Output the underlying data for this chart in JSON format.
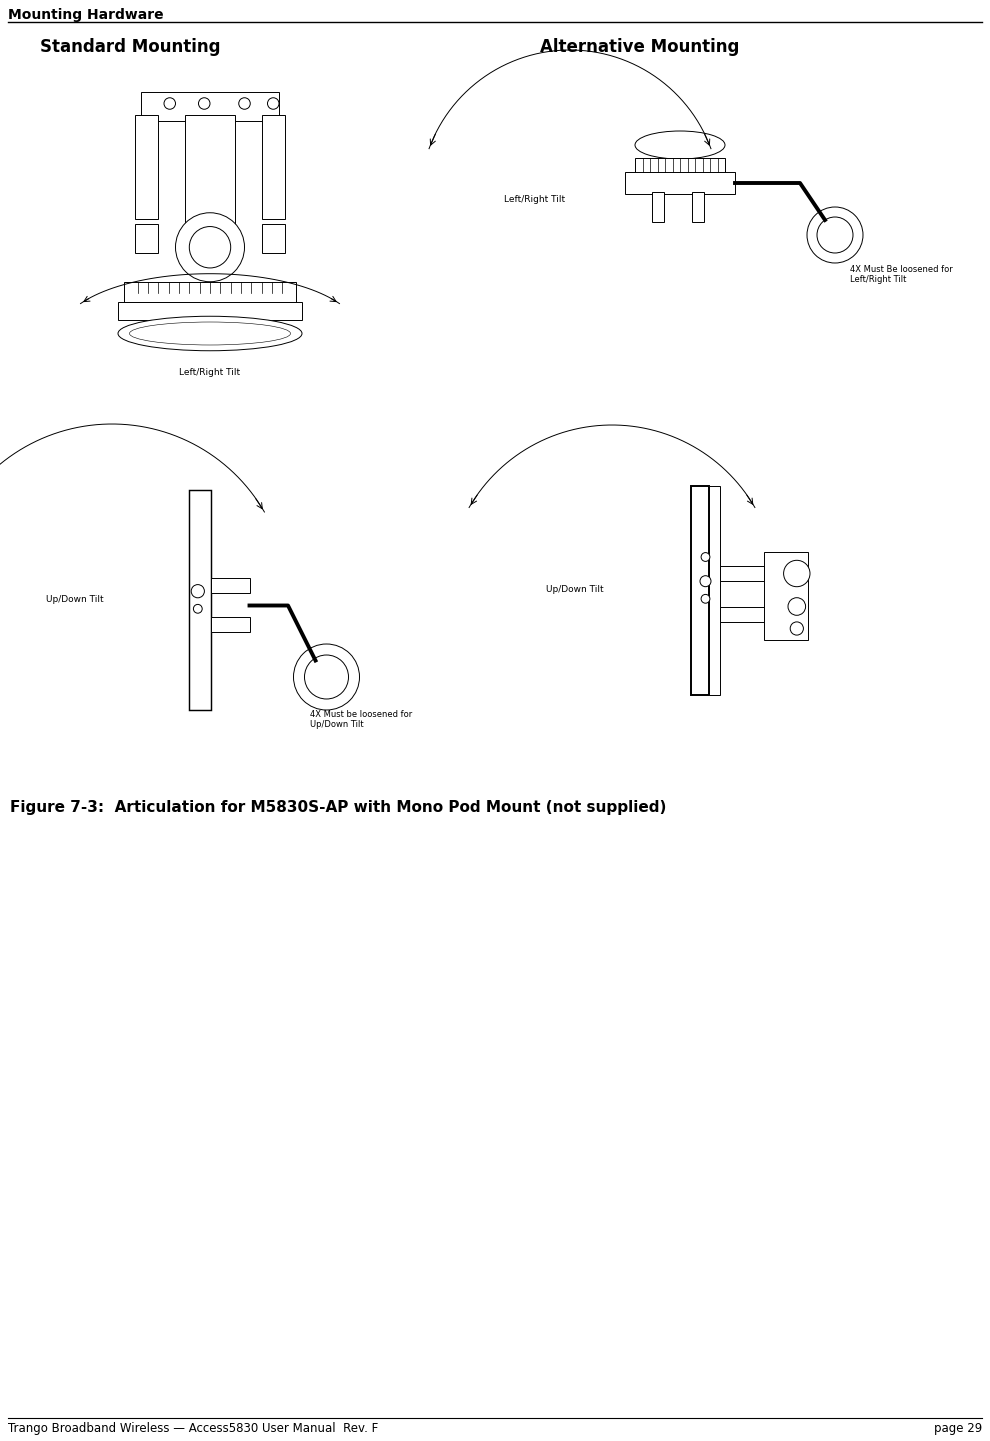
{
  "page_title": "Mounting Hardware",
  "section_left": "Standard Mounting",
  "section_right": "Alternative Mounting",
  "figure_caption": "Figure 7-3:  Articulation for M5830S-AP with Mono Pod Mount (not supplied)",
  "footer_left": "Trango Broadband Wireless — Access5830 User Manual  Rev. F",
  "footer_right": "page 29",
  "bg_color": "#ffffff",
  "title_fontsize": 10,
  "section_fontsize": 12,
  "caption_fontsize": 11,
  "footer_fontsize": 8.5,
  "annotation_fontsize": 6.5
}
